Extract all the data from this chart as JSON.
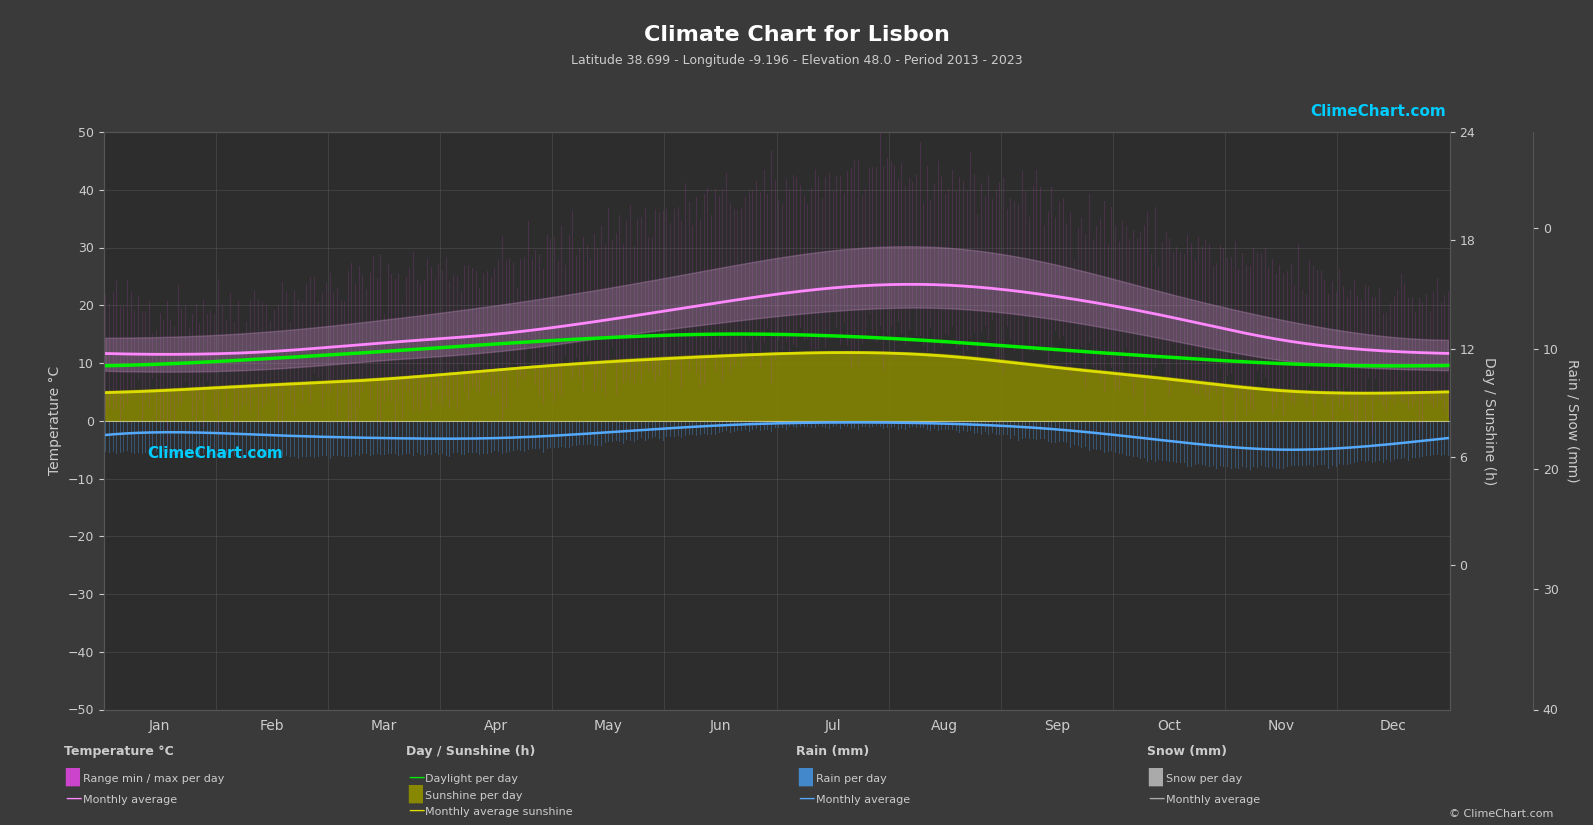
{
  "title": "Climate Chart for Lisbon",
  "subtitle": "Latitude 38.699 - Longitude -9.196 - Elevation 48.0 - Period 2013 - 2023",
  "bg_color": "#3a3a3a",
  "plot_bg_color": "#2d2d2d",
  "text_color": "#cccccc",
  "grid_color": "#555555",
  "months": [
    "Jan",
    "Feb",
    "Mar",
    "Apr",
    "May",
    "Jun",
    "Jul",
    "Aug",
    "Sep",
    "Oct",
    "Nov",
    "Dec"
  ],
  "temp_ylim": [
    -50,
    50
  ],
  "temp_avg": [
    11.5,
    12.0,
    13.5,
    15.0,
    17.5,
    20.5,
    23.0,
    23.5,
    21.5,
    18.0,
    14.0,
    12.0
  ],
  "temp_max_avg": [
    14.5,
    15.5,
    17.5,
    20.0,
    23.0,
    26.5,
    29.5,
    30.0,
    27.0,
    22.0,
    17.5,
    14.5
  ],
  "temp_min_avg": [
    8.5,
    9.0,
    10.5,
    12.0,
    14.5,
    17.0,
    19.0,
    19.5,
    17.5,
    14.0,
    10.5,
    9.0
  ],
  "temp_max_daily": [
    20.0,
    21.0,
    25.0,
    27.0,
    33.0,
    38.0,
    42.0,
    42.0,
    37.0,
    31.0,
    26.0,
    22.0
  ],
  "temp_min_daily": [
    2.0,
    3.0,
    3.5,
    6.0,
    8.0,
    11.0,
    14.0,
    14.0,
    11.0,
    7.0,
    4.0,
    3.0
  ],
  "daylight": [
    9.8,
    10.8,
    12.0,
    13.3,
    14.4,
    15.0,
    14.7,
    13.7,
    12.3,
    11.0,
    9.9,
    9.5
  ],
  "sunshine": [
    5.5,
    6.5,
    7.5,
    9.0,
    10.5,
    11.5,
    12.0,
    11.5,
    9.5,
    7.5,
    5.5,
    5.0
  ],
  "sunshine_avg": [
    5.2,
    6.2,
    7.2,
    8.8,
    10.2,
    11.2,
    11.8,
    11.2,
    9.2,
    7.2,
    5.2,
    4.8
  ],
  "rain_avg_monthly": [
    2.0,
    2.5,
    3.0,
    3.0,
    2.0,
    0.8,
    0.3,
    0.5,
    1.5,
    3.5,
    5.0,
    4.0
  ],
  "rain_daily_max": [
    6.0,
    7.0,
    6.5,
    6.0,
    4.0,
    2.0,
    0.8,
    1.5,
    4.0,
    8.0,
    9.0,
    7.5
  ],
  "rain_color": "#4488cc",
  "snow_color": "#aaaaaa",
  "daylight_color": "#00ee00",
  "sunshine_area_color": "#888800",
  "temp_range_color_magenta": "#cc44cc",
  "temp_avg_color": "#ff88ff",
  "logo_text": "ClimeChart.com",
  "copyright": "© ClimeChart.com"
}
